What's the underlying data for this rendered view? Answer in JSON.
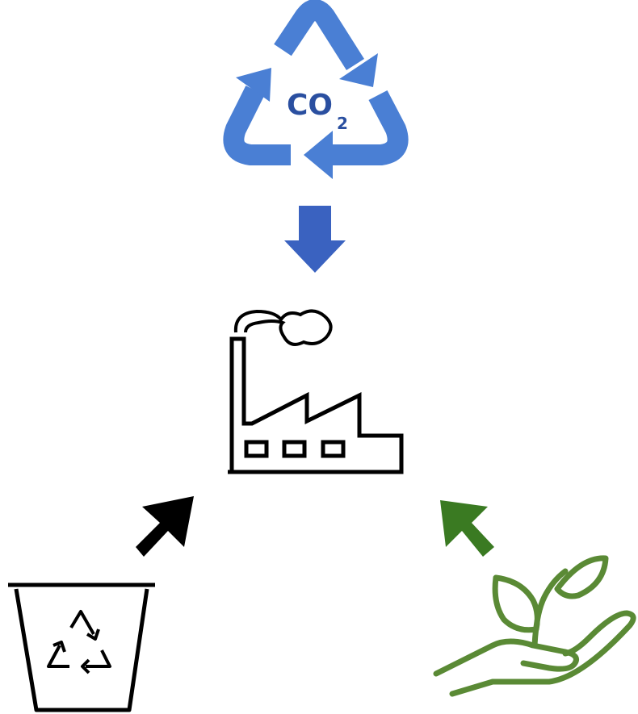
{
  "co2": {
    "main": "CO",
    "subscript": "2"
  }
}
